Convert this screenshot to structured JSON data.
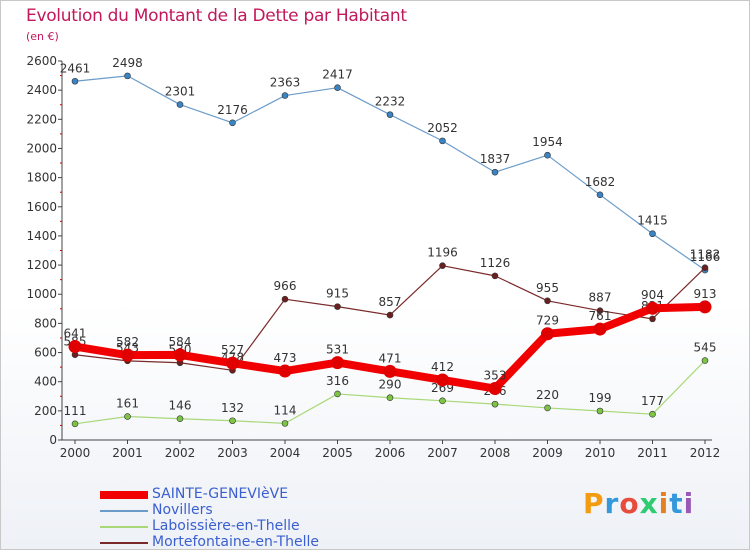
{
  "title": "Evolution du Montant de la Dette par Habitant",
  "subtitle": "(en €)",
  "logo": {
    "text": "Proxiti",
    "letters": [
      "P",
      "r",
      "o",
      "x",
      "i",
      "t",
      "i"
    ],
    "colors": [
      "#f39c12",
      "#3498db",
      "#e74c3c",
      "#2ecc71",
      "#e67e22",
      "#3498db",
      "#9b59b6"
    ]
  },
  "chart_data": {
    "type": "line",
    "categories": [
      "2000",
      "2001",
      "2002",
      "2003",
      "2004",
      "2005",
      "2006",
      "2007",
      "2008",
      "2009",
      "2010",
      "2011",
      "2012"
    ],
    "ylim": [
      0,
      2600
    ],
    "yticks": [
      0,
      200,
      400,
      600,
      800,
      1000,
      1200,
      1400,
      1600,
      1800,
      2000,
      2200,
      2400,
      2600
    ],
    "grid": false,
    "legend_position": "bottom-left",
    "series": [
      {
        "name": "Novillers",
        "color": "#6b9cc9",
        "marker": "#3a84c4",
        "width": 1.2,
        "values": [
          2461,
          2498,
          2301,
          2176,
          2363,
          2417,
          2232,
          2052,
          1837,
          1954,
          1682,
          1415,
          1166
        ],
        "labels": [
          "2461",
          "2498",
          "2301",
          "2176",
          "2363",
          "2417",
          "2232",
          "2052",
          "1837",
          "1954",
          "1682",
          "1415",
          "1166"
        ]
      },
      {
        "name": "Laboissière-en-Thelle",
        "color": "#a8d878",
        "marker": "#7cc444",
        "width": 1.2,
        "values": [
          111,
          161,
          146,
          132,
          114,
          316,
          290,
          269,
          246,
          220,
          199,
          177,
          545
        ],
        "labels": [
          "111",
          "161",
          "146",
          "132",
          "114",
          "316",
          "290",
          "269",
          "246",
          "220",
          "199",
          "177",
          "545"
        ]
      },
      {
        "name": "Mortefontaine-en-Thelle",
        "color": "#7a2a2a",
        "marker": "#6b1f1f",
        "width": 1.2,
        "values": [
          585,
          543,
          530,
          478,
          966,
          915,
          857,
          1196,
          1126,
          955,
          887,
          831,
          1182
        ],
        "labels": [
          "585",
          "543",
          "530",
          "478",
          "966",
          "915",
          "857",
          "1196",
          "1126",
          "955",
          "887",
          "831",
          "1182"
        ]
      },
      {
        "name": "SAINTE-GENEVIèVE",
        "color": "#f00000",
        "marker": "#e00000",
        "width": 8,
        "values": [
          641,
          582,
          584,
          527,
          473,
          531,
          471,
          412,
          353,
          729,
          761,
          904,
          913
        ],
        "labels": [
          "641",
          "582",
          "584",
          "527",
          "473",
          "531",
          "471",
          "412",
          "353",
          "729",
          "761",
          "904",
          "913"
        ]
      }
    ],
    "legend_order": [
      "SAINTE-GENEVIèVE",
      "Novillers",
      "Laboissière-en-Thelle",
      "Mortefontaine-en-Thelle"
    ]
  }
}
